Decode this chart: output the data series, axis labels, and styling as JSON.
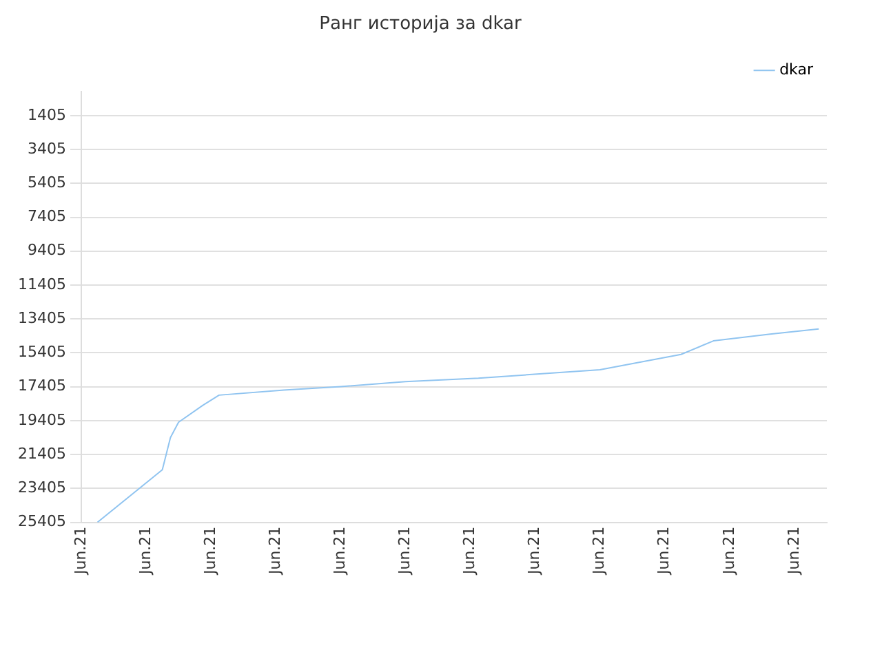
{
  "chart_data": {
    "type": "line",
    "title": "Ранг историја за dkar",
    "categories": [
      "Jun.21",
      null,
      null,
      null,
      null,
      null,
      null,
      null,
      "Jun.21",
      null,
      null,
      null,
      null,
      null,
      null,
      null,
      "Jun.21",
      null,
      null,
      null,
      null,
      null,
      null,
      null,
      "Jun.21",
      null,
      null,
      null,
      null,
      null,
      null,
      null,
      "Jun.21",
      null,
      null,
      null,
      null,
      null,
      null,
      null,
      "Jun.21",
      null,
      null,
      null,
      null,
      null,
      null,
      null,
      "Jun.21",
      null,
      null,
      null,
      null,
      null,
      null,
      null,
      "Jun.21",
      null,
      null,
      null,
      null,
      null,
      null,
      null,
      "Jun.21",
      null,
      null,
      null,
      null,
      null,
      null,
      null,
      "Jun.21",
      null,
      null,
      null,
      null,
      null,
      null,
      null,
      "Jun.21",
      null,
      null,
      null,
      null,
      null,
      null,
      null,
      "Jun.21",
      null,
      null,
      null,
      null
    ],
    "series": [
      {
        "name": "dkar",
        "color": "#90c4f0",
        "values": [
          null,
          null,
          25400,
          null,
          null,
          null,
          null,
          null,
          null,
          null,
          22300,
          20400,
          19500,
          null,
          null,
          18500,
          null,
          17900,
          null,
          null,
          null,
          null,
          null,
          null,
          null,
          17600,
          null,
          null,
          null,
          null,
          null,
          null,
          17400,
          null,
          null,
          null,
          null,
          null,
          null,
          null,
          17100,
          null,
          null,
          null,
          null,
          null,
          null,
          null,
          null,
          16900,
          null,
          null,
          null,
          null,
          null,
          16700,
          null,
          null,
          null,
          null,
          null,
          null,
          null,
          null,
          16400,
          null,
          null,
          null,
          null,
          null,
          null,
          null,
          null,
          null,
          15500,
          null,
          null,
          null,
          14700,
          null,
          null,
          null,
          null,
          null,
          null,
          14300,
          null,
          null,
          null,
          null,
          null,
          14000,
          null
        ]
      }
    ],
    "ylim": [
      25405,
      0
    ],
    "yticks": [
      1405,
      3405,
      5405,
      7405,
      9405,
      11405,
      13405,
      15405,
      17405,
      19405,
      21405,
      23405,
      25405
    ],
    "grid": true,
    "legend": "top right",
    "marker": "none",
    "line_style": "solid"
  }
}
